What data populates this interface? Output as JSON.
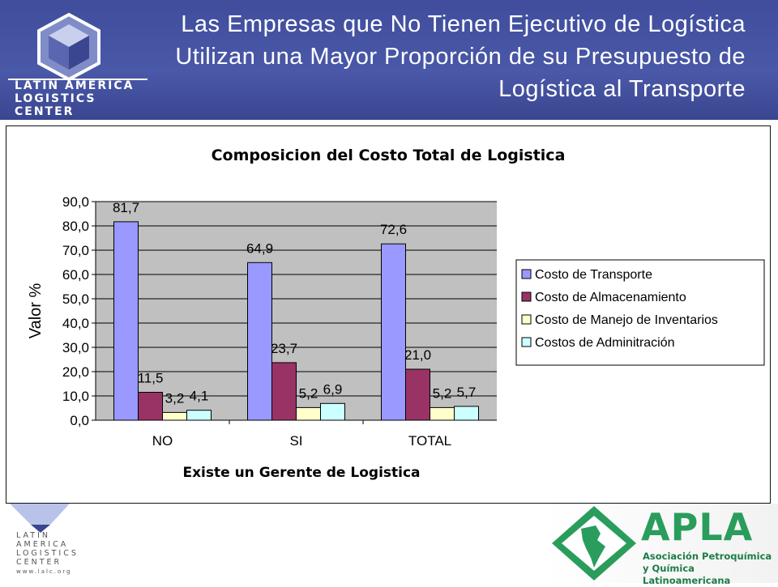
{
  "header": {
    "title": "Las Empresas que No Tienen Ejecutivo de Logística Utilizan una Mayor Proporción de su  Presupuesto de Logística al Transporte",
    "logo_line1": "LATIN AMERICA",
    "logo_line2": "LOGISTICS CENTER"
  },
  "footer": {
    "stack_letters": [
      "LATIN",
      "AMERICA",
      "LOGISTICS",
      "CENTER"
    ],
    "url": "www.lalc.org",
    "apla_word": "APLA",
    "apla_line1": "Asociación Petroquímica",
    "apla_line2": "y Química Latinoamericana"
  },
  "colors": {
    "header_bg": "#4a58a8",
    "plot_bg": "#c0c0c0",
    "series": [
      "#9999ff",
      "#993366",
      "#ffffcc",
      "#ccffff"
    ]
  },
  "chart_data": {
    "type": "bar",
    "title": "Composicion del Costo Total de Logistica",
    "xlabel": "Existe un Gerente de Logistica",
    "ylabel": "Valor %",
    "categories": [
      "NO",
      "SI",
      "TOTAL"
    ],
    "series": [
      {
        "name": "Costo de Transporte",
        "values": [
          81.7,
          64.9,
          72.6
        ],
        "labels": [
          "81,7",
          "64,9",
          "72,6"
        ]
      },
      {
        "name": "Costo de Almacenamiento",
        "values": [
          11.5,
          23.7,
          21.0
        ],
        "labels": [
          "11,5",
          "23,7",
          "21,0"
        ]
      },
      {
        "name": "Costo de Manejo de Inventarios",
        "values": [
          3.2,
          5.2,
          5.2
        ],
        "labels": [
          "3,2",
          "5,2",
          "5,2"
        ]
      },
      {
        "name": "Costos de Adminitración",
        "values": [
          4.1,
          6.9,
          5.7
        ],
        "labels": [
          "4,1",
          "6,9",
          "5,7"
        ]
      }
    ],
    "ylim": [
      0,
      90
    ],
    "yticks": [
      "0,0",
      "10,0",
      "20,0",
      "30,0",
      "40,0",
      "50,0",
      "60,0",
      "70,0",
      "80,0",
      "90,0"
    ],
    "grid": true,
    "legend": "right"
  }
}
